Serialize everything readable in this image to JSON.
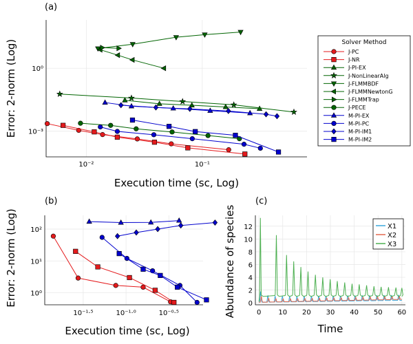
{
  "chart_data": [
    {
      "panel": "(a)",
      "type": "line",
      "xlabel": "Execution time (sc, Log)",
      "ylabel": "Error: 2-norm (Log)",
      "xscale": "log10",
      "yscale": "log10",
      "xlim": [
        0.0045,
        0.8
      ],
      "ylim": [
        6e-05,
        200
      ],
      "xticks": [
        {
          "v": 0.01,
          "label": "10⁻²"
        },
        {
          "v": 0.1,
          "label": "10⁻¹"
        }
      ],
      "yticks": [
        {
          "v": 0.001,
          "label": "10⁻³"
        },
        {
          "v": 1,
          "label": "10⁰"
        }
      ],
      "grid": true,
      "legend_title": "Solver Method",
      "legend_position": "outer-right",
      "series": [
        {
          "name": "J-PC",
          "color": "#e41a1c",
          "marker": "circle",
          "x": [
            0.0046,
            0.0086,
            0.0138,
            0.0275,
            0.054,
            0.169
          ],
          "y": [
            0.0023,
            0.0011,
            0.00069,
            0.00043,
            0.000251,
            0.000131
          ]
        },
        {
          "name": "J-NR",
          "color": "#e41a1c",
          "marker": "square",
          "x": [
            0.0063,
            0.0117,
            0.0185,
            0.0387,
            0.075,
            0.233
          ],
          "y": [
            0.0019,
            0.00093,
            0.00052,
            0.0003,
            0.000161,
            8.2e-05
          ]
        },
        {
          "name": "J-PI-EX",
          "color": "#006400",
          "marker": "triangle-up",
          "x": [
            0.0215,
            0.0427,
            0.0813,
            0.159,
            0.312
          ],
          "y": [
            0.0298,
            0.0203,
            0.0172,
            0.0143,
            0.0118
          ]
        },
        {
          "name": "J-NonLinearAlg",
          "color": "#006400",
          "marker": "star",
          "x": [
            0.0018,
            0.0059,
            0.0245,
            0.0676,
            0.187,
            0.617
          ],
          "y": [
            0.082,
            0.059,
            0.038,
            0.026,
            0.0181,
            0.0082
          ]
        },
        {
          "name": "J-FLMMBDF",
          "color": "#006400",
          "marker": "triangle-down",
          "x": [
            0.0126,
            0.0251,
            0.0595,
            0.105,
            0.214
          ],
          "y": [
            8.7,
            14.0,
            30.0,
            40.0,
            53.0
          ]
        },
        {
          "name": "J-FLMMNewtonG",
          "color": "#006400",
          "marker": "triangle-left",
          "x": [
            0.0132,
            0.0187,
            0.025,
            0.0467
          ],
          "y": [
            7.6,
            4.2,
            2.5,
            1.0
          ]
        },
        {
          "name": "J-FLMMTrap",
          "color": "#006400",
          "marker": "triangle-right",
          "x": [
            0.0137,
            0.019
          ],
          "y": [
            9.6,
            8.9
          ]
        },
        {
          "name": "J-PECE",
          "color": "#006400",
          "marker": "circle",
          "x": [
            0.0089,
            0.0162,
            0.0269,
            0.0549,
            0.112,
            0.209
          ],
          "y": [
            0.0024,
            0.0019,
            0.0013,
            0.00092,
            0.00062,
            0.00044
          ]
        },
        {
          "name": "M-PI-EX",
          "color": "#0000cd",
          "marker": "triangle-up",
          "x": [
            0.0145,
            0.0245,
            0.0562,
            0.117,
            0.258
          ],
          "y": [
            0.0232,
            0.0155,
            0.0123,
            0.0095,
            0.0073
          ]
        },
        {
          "name": "M-PI-PC",
          "color": "#0000cd",
          "marker": "circle",
          "x": [
            0.0132,
            0.0185,
            0.0382,
            0.082,
            0.229,
            0.317
          ],
          "y": [
            0.0016,
            0.00098,
            0.00068,
            0.00044,
            0.00024,
            0.000155
          ]
        },
        {
          "name": "M-PI-IM1",
          "color": "#0000cd",
          "marker": "diamond",
          "x": [
            0.0199,
            0.0398,
            0.0781,
            0.168,
            0.355,
            0.441
          ],
          "y": [
            0.0174,
            0.0135,
            0.0116,
            0.0092,
            0.0064,
            0.0052
          ]
        },
        {
          "name": "M-PI-IM2",
          "color": "#0000cd",
          "marker": "square",
          "x": [
            0.025,
            0.0517,
            0.087,
            0.193,
            0.454
          ],
          "y": [
            0.0034,
            0.0017,
            0.00096,
            0.00064,
            0.000102
          ]
        }
      ]
    },
    {
      "panel": "(b)",
      "type": "line",
      "xlabel": "Execution time (sc, Log)",
      "ylabel": "Error: 2-norm (Log)",
      "xscale": "log10",
      "yscale": "log10",
      "xlim": [
        -1.95,
        -0.1
      ],
      "ylim": [
        0.42,
        270
      ],
      "xticks": [
        {
          "v": -1.5,
          "label": "10⁻¹·⁵"
        },
        {
          "v": -1.0,
          "label": "10⁻¹·⁰"
        },
        {
          "v": -0.5,
          "label": "10⁻⁰·⁵"
        }
      ],
      "yticks": [
        {
          "v": 1,
          "label": "10⁰"
        },
        {
          "v": 10,
          "label": "10¹"
        },
        {
          "v": 100,
          "label": "10²"
        }
      ],
      "grid": true,
      "series": [
        {
          "name": "red-circle",
          "color": "#e41a1c",
          "marker": "circle",
          "x": [
            -1.85,
            -1.56,
            -1.12,
            -0.8,
            -0.48
          ],
          "y": [
            60,
            2.9,
            1.7,
            1.5,
            0.52
          ]
        },
        {
          "name": "red-square",
          "color": "#e41a1c",
          "marker": "square",
          "x": [
            -1.59,
            -1.33,
            -0.96,
            -0.66,
            -0.44
          ],
          "y": [
            20,
            6.5,
            3.0,
            1.2,
            0.5
          ]
        },
        {
          "name": "blue-circle",
          "color": "#0000cd",
          "marker": "circle",
          "x": [
            -1.28,
            -0.99,
            -0.69,
            -0.37,
            -0.17
          ],
          "y": [
            55,
            12,
            4.9,
            1.7,
            0.5
          ]
        },
        {
          "name": "blue-square",
          "color": "#0000cd",
          "marker": "square",
          "x": [
            -1.08,
            -0.8,
            -0.6,
            -0.4,
            -0.06
          ],
          "y": [
            17,
            5.5,
            3.5,
            1.5,
            0.6
          ]
        },
        {
          "name": "blue-triangle",
          "color": "#0000cd",
          "marker": "triangle-up",
          "x": [
            -1.43,
            -1.06,
            -0.71,
            -0.38
          ],
          "y": [
            172,
            160,
            162,
            185
          ]
        },
        {
          "name": "blue-diamond",
          "color": "#0000cd",
          "marker": "diamond",
          "x": [
            -1.1,
            -0.88,
            -0.63,
            -0.36,
            0.04
          ],
          "y": [
            60,
            78,
            100,
            130,
            160
          ]
        }
      ]
    },
    {
      "panel": "(c)",
      "type": "line",
      "xlabel": "Time",
      "ylabel": "Abundance of species",
      "xlim": [
        -1.5,
        61.5
      ],
      "ylim": [
        -0.3,
        13.7
      ],
      "xticks": [
        0,
        10,
        20,
        30,
        40,
        50,
        60
      ],
      "yticks": [
        0,
        2,
        4,
        6,
        8,
        10,
        12
      ],
      "grid": true,
      "legend_position": "top-right",
      "series": [
        {
          "name": "X1",
          "color": "#3aa8dc",
          "model": "oscillation",
          "first_peak_t": 0.3,
          "peak_values": [
            1.6,
            1.0,
            0.9,
            0.85,
            0.8
          ],
          "period": 3.05,
          "baseline": 0.1,
          "settle": 0.3
        },
        {
          "name": "X2",
          "color": "#e2694f",
          "model": "oscillation",
          "first_peak_t": 0.6,
          "peak_values": [
            0.9,
            0.6,
            0.5,
            0.45,
            0.45
          ],
          "period": 3.05,
          "baseline": 0.1,
          "settle": 0.45
        },
        {
          "name": "X3",
          "color": "#4caf50",
          "model": "oscillation",
          "first_peak_t": 0.6,
          "peaks": [
            {
              "t": 0.6,
              "y": 13.3
            },
            {
              "t": 7.3,
              "y": 10.6
            },
            {
              "t": 11.6,
              "y": 7.5
            },
            {
              "t": 14.6,
              "y": 6.5
            },
            {
              "t": 17.6,
              "y": 5.6
            },
            {
              "t": 20.6,
              "y": 4.9
            },
            {
              "t": 23.7,
              "y": 4.4
            },
            {
              "t": 26.8,
              "y": 4.0
            },
            {
              "t": 29.9,
              "y": 3.7
            },
            {
              "t": 32.9,
              "y": 3.4
            },
            {
              "t": 36.0,
              "y": 3.2
            },
            {
              "t": 39.1,
              "y": 3.0
            },
            {
              "t": 42.1,
              "y": 2.9
            },
            {
              "t": 45.2,
              "y": 2.75
            },
            {
              "t": 48.3,
              "y": 2.6
            },
            {
              "t": 51.3,
              "y": 2.5
            },
            {
              "t": 54.4,
              "y": 2.45
            },
            {
              "t": 57.5,
              "y": 2.4
            },
            {
              "t": 60.0,
              "y": 2.35
            }
          ],
          "baseline": 1.0
        }
      ]
    }
  ]
}
